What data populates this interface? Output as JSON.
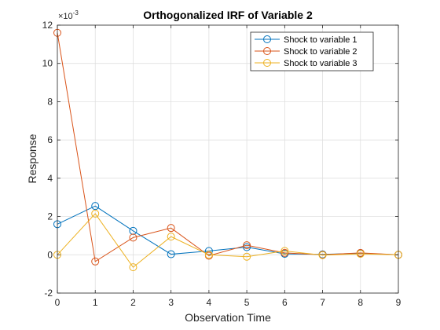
{
  "chart_data": {
    "type": "line",
    "title": "Orthogonalized IRF of Variable 2",
    "xlabel": "Observation Time",
    "ylabel": "Response",
    "y_exponent_label": "×10",
    "y_exponent_power": "-3",
    "x": [
      0,
      1,
      2,
      3,
      4,
      5,
      6,
      7,
      8,
      9
    ],
    "xlim": [
      0,
      9
    ],
    "ylim": [
      -2,
      12
    ],
    "x_ticks": [
      "0",
      "1",
      "2",
      "3",
      "4",
      "5",
      "6",
      "7",
      "8",
      "9"
    ],
    "y_ticks": [
      "-2",
      "0",
      "2",
      "4",
      "6",
      "8",
      "10",
      "12"
    ],
    "y_tick_values": [
      -2,
      0,
      2,
      4,
      6,
      8,
      10,
      12
    ],
    "grid": true,
    "legend_position": "top-right",
    "series": [
      {
        "name": "Shock to variable 1",
        "color": "#0072BD",
        "values": [
          1.6,
          2.55,
          1.25,
          0.03,
          0.2,
          0.4,
          0.05,
          0.02,
          0.08,
          0.0
        ]
      },
      {
        "name": "Shock to variable 2",
        "color": "#D95319",
        "values": [
          11.6,
          -0.35,
          0.9,
          1.4,
          -0.05,
          0.5,
          0.1,
          0.0,
          0.1,
          0.0
        ]
      },
      {
        "name": "Shock to variable 3",
        "color": "#EDB120",
        "values": [
          0.0,
          2.15,
          -0.65,
          0.95,
          0.0,
          -0.1,
          0.2,
          -0.02,
          0.05,
          0.0
        ]
      }
    ]
  }
}
